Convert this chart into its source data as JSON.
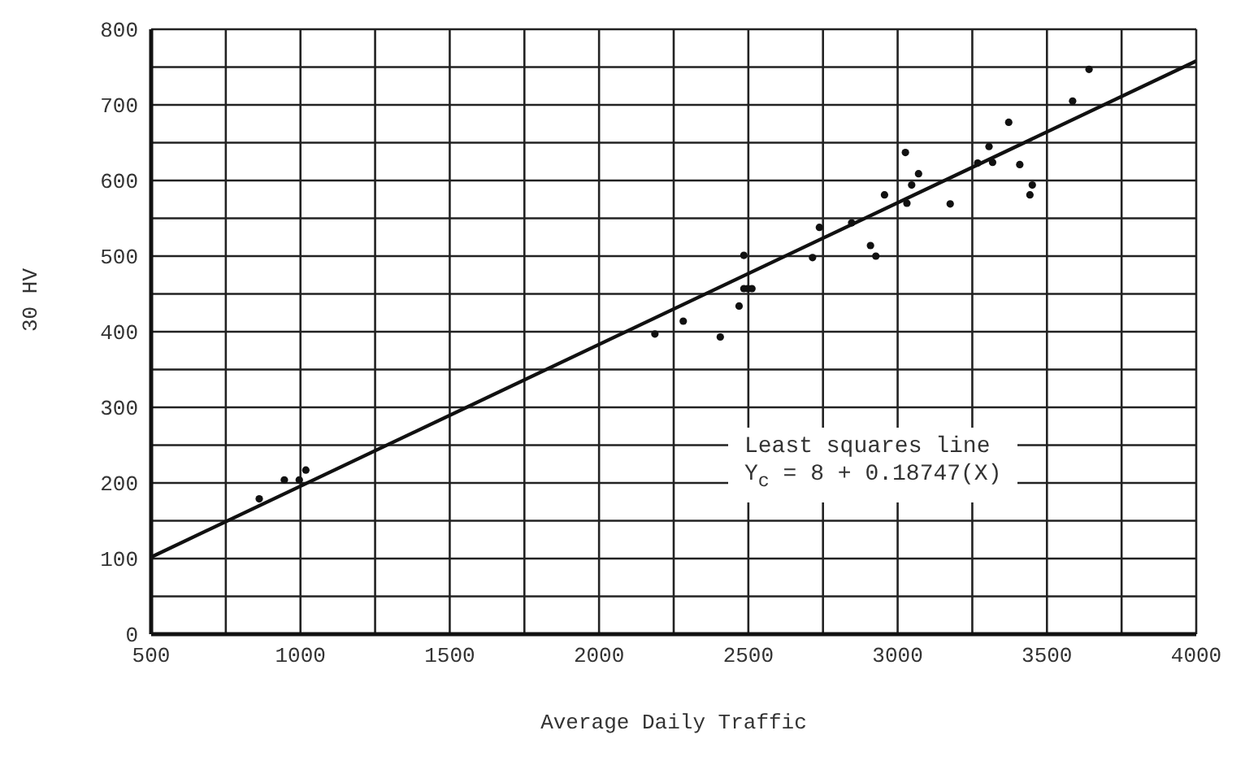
{
  "chart_data": {
    "type": "scatter",
    "xlabel": "Average Daily Traffic",
    "ylabel": "30 HV",
    "xlim": [
      500,
      4000
    ],
    "ylim": [
      0,
      800
    ],
    "xticks": [
      500,
      {
        "value": 750,
        "label": null
      },
      1000,
      {
        "value": 1250,
        "label": null
      },
      1500,
      {
        "value": 1750,
        "label": null
      },
      2000,
      {
        "value": 2250,
        "label": null
      },
      2500,
      {
        "value": 2750,
        "label": null
      },
      3000,
      {
        "value": 3250,
        "label": null
      },
      3500,
      {
        "value": 3750,
        "label": null
      },
      4000
    ],
    "yticks": [
      0,
      {
        "value": 50,
        "label": null
      },
      100,
      {
        "value": 150,
        "label": null
      },
      200,
      {
        "value": 250,
        "label": null
      },
      300,
      {
        "value": 350,
        "label": null
      },
      400,
      {
        "value": 450,
        "label": null
      },
      500,
      {
        "value": 550,
        "label": null
      },
      600,
      {
        "value": 650,
        "label": null
      },
      700,
      {
        "value": 750,
        "label": null
      },
      800
    ],
    "grid": true,
    "annotations": [
      "Least squares line",
      "Y$_{c}$ = 8 + 0.18747(X)"
    ],
    "series": [
      {
        "marker": "circle",
        "color": "#111111",
        "x": [
          862,
          946,
          996,
          1018,
          2187,
          2282,
          2406,
          2469,
          2485,
          2485,
          2498,
          2512,
          2715,
          2738,
          2846,
          2909,
          2927,
          2956,
          3026,
          3031,
          3047,
          3070,
          3176,
          3268,
          3306,
          3318,
          3372,
          3409,
          3451,
          3443,
          3586,
          3641
        ],
        "values": [
          179,
          204,
          204,
          217,
          397,
          414,
          393,
          434,
          501,
          457,
          457,
          457,
          498,
          538,
          544,
          514,
          500,
          581,
          637,
          570,
          594,
          609,
          569,
          623,
          645,
          624,
          677,
          621,
          594,
          581,
          705,
          747
        ]
      },
      {
        "type": "line",
        "marker": "none",
        "line_style": "solid",
        "color": "#111111",
        "x": [
          500,
          4000
        ],
        "values": [
          102,
          758
        ]
      }
    ]
  }
}
